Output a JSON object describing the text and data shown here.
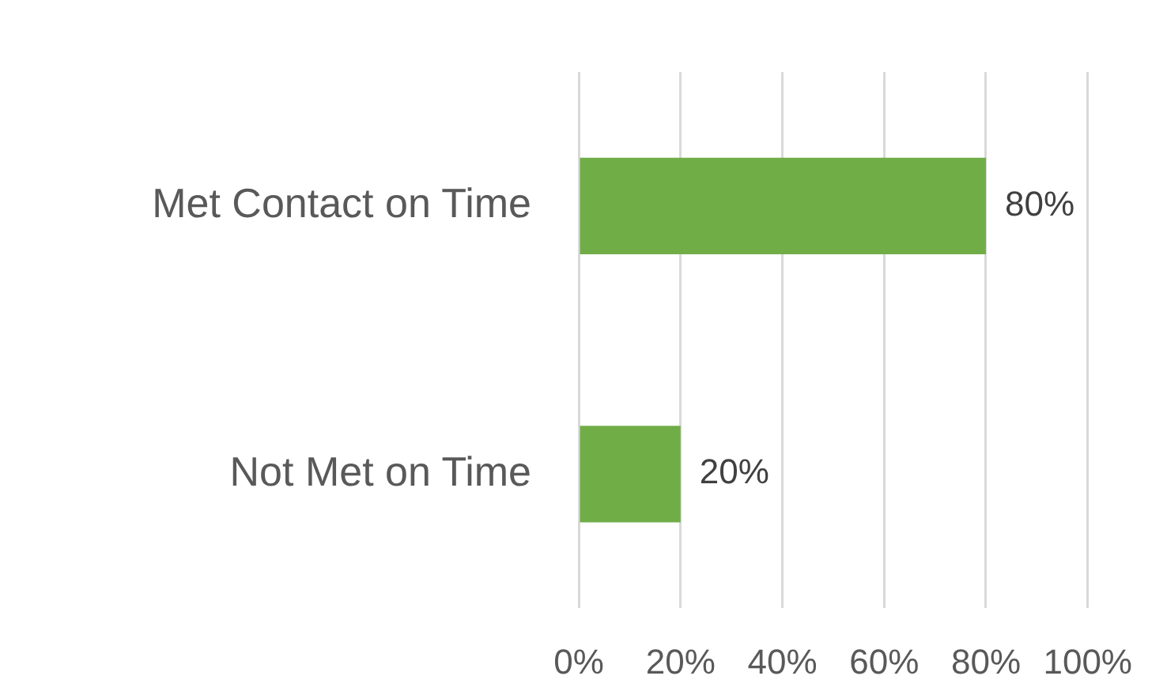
{
  "chart_data": {
    "type": "bar",
    "orientation": "horizontal",
    "categories": [
      "Met Contact on Time",
      "Not Met on Time"
    ],
    "values": [
      80,
      20
    ],
    "color": "#70ad47",
    "value_labels": [
      "80%",
      "20%"
    ],
    "xlim": [
      0,
      100
    ],
    "xticks": [
      {
        "value": 0,
        "label": "0%"
      },
      {
        "value": 20,
        "label": "20%"
      },
      {
        "value": 40,
        "label": "40%"
      },
      {
        "value": 60,
        "label": "60%"
      },
      {
        "value": 80,
        "label": "80%"
      },
      {
        "value": 100,
        "label": "100%"
      }
    ],
    "grid": "x",
    "legend": false
  }
}
